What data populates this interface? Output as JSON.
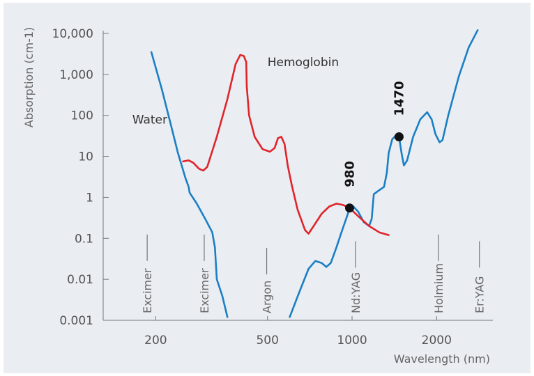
{
  "chart_data": {
    "type": "line",
    "title": "",
    "xlabel": "Wavelength (nm)",
    "ylabel": "Absorption (cm-1)",
    "x_scale": "log",
    "y_scale": "log",
    "xlim": [
      130,
      3100
    ],
    "ylim": [
      0.001,
      10000
    ],
    "x_ticks": [
      {
        "value": 200,
        "label": "200"
      },
      {
        "value": 500,
        "label": "500"
      },
      {
        "value": 1000,
        "label": "1000"
      },
      {
        "value": 2000,
        "label": "2000"
      }
    ],
    "y_ticks": [
      {
        "value": 10000,
        "label": "10,000"
      },
      {
        "value": 1000,
        "label": "1,000"
      },
      {
        "value": 100,
        "label": "100"
      },
      {
        "value": 10,
        "label": "10"
      },
      {
        "value": 1,
        "label": "1"
      },
      {
        "value": 0.1,
        "label": "0.1"
      },
      {
        "value": 0.01,
        "label": "0.01"
      },
      {
        "value": 0.001,
        "label": "0.001"
      }
    ],
    "grid": false,
    "legend": "none",
    "series": [
      {
        "name": "Water",
        "color": "#1a7fc4",
        "label_at": [
          165,
          80
        ],
        "points": [
          [
            193,
            3500
          ],
          [
            210,
            450
          ],
          [
            225,
            70
          ],
          [
            240,
            12
          ],
          [
            255,
            3
          ],
          [
            262,
            1.8
          ],
          [
            264,
            1.3
          ],
          [
            280,
            0.7
          ],
          [
            300,
            0.3
          ],
          [
            318,
            0.14
          ],
          [
            325,
            0.06
          ],
          [
            330,
            0.01
          ],
          [
            345,
            0.004
          ],
          [
            360,
            0.0012
          ]
        ]
      },
      {
        "name": "",
        "color": "#1a7fc4",
        "points": [
          [
            600,
            0.0012
          ],
          [
            650,
            0.005
          ],
          [
            700,
            0.018
          ],
          [
            740,
            0.028
          ],
          [
            780,
            0.025
          ],
          [
            810,
            0.02
          ],
          [
            840,
            0.025
          ],
          [
            880,
            0.06
          ],
          [
            920,
            0.15
          ],
          [
            960,
            0.35
          ],
          [
            980,
            0.55
          ],
          [
            1010,
            0.6
          ],
          [
            1050,
            0.45
          ],
          [
            1100,
            0.25
          ],
          [
            1150,
            0.2
          ],
          [
            1175,
            0.3
          ],
          [
            1195,
            1.2
          ],
          [
            1250,
            1.5
          ],
          [
            1300,
            1.8
          ],
          [
            1330,
            4
          ],
          [
            1350,
            12
          ],
          [
            1390,
            26
          ],
          [
            1430,
            32
          ],
          [
            1470,
            30
          ],
          [
            1500,
            12
          ],
          [
            1530,
            6
          ],
          [
            1570,
            8
          ],
          [
            1650,
            30
          ],
          [
            1750,
            80
          ],
          [
            1850,
            120
          ],
          [
            1920,
            80
          ],
          [
            1980,
            35
          ],
          [
            2050,
            22
          ],
          [
            2100,
            25
          ],
          [
            2200,
            100
          ],
          [
            2400,
            900
          ],
          [
            2600,
            4500
          ],
          [
            2800,
            12000
          ]
        ]
      },
      {
        "name": "Hemoglobin",
        "color": "#e0242b",
        "label_at": [
          500,
          2000
        ],
        "points": [
          [
            250,
            7.5
          ],
          [
            262,
            8
          ],
          [
            272,
            7
          ],
          [
            285,
            5
          ],
          [
            295,
            4.5
          ],
          [
            305,
            5.5
          ],
          [
            330,
            30
          ],
          [
            360,
            250
          ],
          [
            385,
            1800
          ],
          [
            400,
            3000
          ],
          [
            412,
            2800
          ],
          [
            420,
            2000
          ],
          [
            422,
            500
          ],
          [
            430,
            100
          ],
          [
            450,
            30
          ],
          [
            480,
            15
          ],
          [
            510,
            13
          ],
          [
            530,
            16
          ],
          [
            545,
            28
          ],
          [
            560,
            30
          ],
          [
            575,
            20
          ],
          [
            590,
            6
          ],
          [
            610,
            2
          ],
          [
            640,
            0.5
          ],
          [
            680,
            0.16
          ],
          [
            700,
            0.13
          ],
          [
            730,
            0.2
          ],
          [
            780,
            0.4
          ],
          [
            830,
            0.6
          ],
          [
            880,
            0.7
          ],
          [
            930,
            0.65
          ],
          [
            980,
            0.55
          ],
          [
            1050,
            0.35
          ],
          [
            1150,
            0.2
          ],
          [
            1250,
            0.14
          ],
          [
            1350,
            0.12
          ]
        ]
      }
    ],
    "highlight_points": [
      {
        "x": 980,
        "y": 0.55,
        "label": "980"
      },
      {
        "x": 1470,
        "y": 30,
        "label": "1470"
      }
    ],
    "laser_bands": [
      {
        "label": "Excimer",
        "x": 193
      },
      {
        "label": "Excimer",
        "x": 308
      },
      {
        "label": "Argon",
        "x": 514
      },
      {
        "label": "Nd:YAG",
        "x": 1064
      },
      {
        "label": "Holmium",
        "x": 2100
      },
      {
        "label": "Er:YAG",
        "x": 2940
      }
    ]
  }
}
